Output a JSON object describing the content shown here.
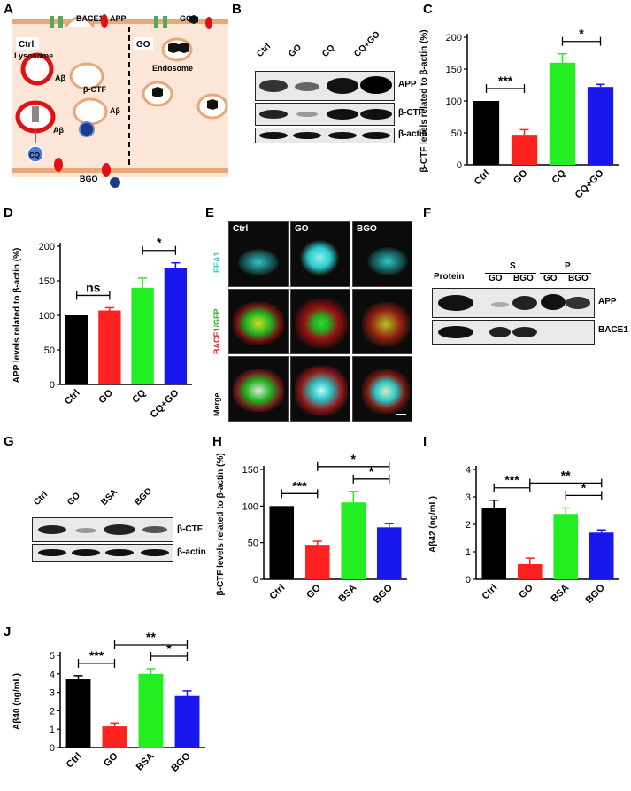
{
  "panels": {
    "A": {
      "label": "A",
      "texts": {
        "ctrl": "Ctrl",
        "go_region": "GO",
        "bace1": "BACE1",
        "app": "APP",
        "lysosome": "Lysosome",
        "abeta1": "Aβ",
        "bctf": "β-CTF",
        "abeta2": "Aβ",
        "abeta3": "Aβ",
        "cq": "CQ",
        "bgo": "BGO",
        "go_top": "GO",
        "endosome": "Endosome"
      }
    },
    "B": {
      "label": "B",
      "columns": [
        "Ctrl",
        "GO",
        "CQ",
        "CQ+GO"
      ],
      "rows": [
        "APP",
        "β-CTF",
        "β-actin"
      ]
    },
    "C": {
      "label": "C"
    },
    "D": {
      "label": "D"
    },
    "E": {
      "label": "E",
      "columns": [
        "Ctrl",
        "GO",
        "BGO"
      ],
      "rows": [
        "EEA1",
        "BACE1/GFP",
        "Merge"
      ],
      "row_bace1": "BACE1",
      "row_gfp": "/GFP",
      "colors": {
        "eea1": "#2ec8c8",
        "bace1": "#e02020",
        "gfp": "#22b222"
      }
    },
    "F": {
      "label": "F",
      "protein": "Protein",
      "group_s": "S",
      "group_p": "P",
      "sub_columns": [
        "GO",
        "BGO",
        "GO",
        "BGO"
      ],
      "rows": [
        "APP",
        "BACE1"
      ]
    },
    "G": {
      "label": "G",
      "columns": [
        "Ctrl",
        "GO",
        "BSA",
        "BGO"
      ],
      "rows": [
        "β-CTF",
        "β-actin"
      ]
    },
    "H": {
      "label": "H"
    },
    "I": {
      "label": "I"
    },
    "J": {
      "label": "J"
    }
  },
  "chart_data": [
    {
      "id": "C",
      "type": "bar",
      "categories": [
        "Ctrl",
        "GO",
        "CQ",
        "CQ+GO"
      ],
      "values": [
        100,
        47,
        160,
        122
      ],
      "errors": [
        0,
        8,
        14,
        4
      ],
      "ylabel": "β-CTF levels related to β-actin (%)",
      "ylim": [
        0,
        200
      ],
      "yticks": [
        0,
        50,
        100,
        150,
        200
      ],
      "colors": [
        "#000000",
        "#ff2020",
        "#22ee22",
        "#1818ee"
      ],
      "significance": [
        {
          "from": 0,
          "to": 1,
          "label": "***"
        },
        {
          "from": 2,
          "to": 3,
          "label": "*"
        }
      ]
    },
    {
      "id": "D",
      "type": "bar",
      "categories": [
        "Ctrl",
        "GO",
        "CQ",
        "CQ+GO"
      ],
      "values": [
        100,
        107,
        140,
        168
      ],
      "errors": [
        0,
        4,
        14,
        8
      ],
      "ylabel": "APP levels  related to β-actin (%)",
      "ylim": [
        0,
        200
      ],
      "yticks": [
        0,
        50,
        100,
        150,
        200
      ],
      "colors": [
        "#000000",
        "#ff2020",
        "#22ee22",
        "#1818ee"
      ],
      "significance": [
        {
          "from": 0,
          "to": 1,
          "label": "ns"
        },
        {
          "from": 2,
          "to": 3,
          "label": "*"
        }
      ]
    },
    {
      "id": "H",
      "type": "bar",
      "categories": [
        "Ctrl",
        "GO",
        "BSA",
        "BGO"
      ],
      "values": [
        100,
        47,
        105,
        71
      ],
      "errors": [
        0,
        5,
        15,
        5
      ],
      "ylabel": "β-CTF levels related to β-actin (%)",
      "ylim": [
        0,
        150
      ],
      "yticks": [
        0,
        50,
        100,
        150
      ],
      "colors": [
        "#000000",
        "#ff2020",
        "#22ee22",
        "#1818ee"
      ],
      "significance": [
        {
          "from": 0,
          "to": 1,
          "label": "***"
        },
        {
          "from": 1,
          "to": 3,
          "label": "*"
        },
        {
          "from": 2,
          "to": 3,
          "label": "*"
        }
      ]
    },
    {
      "id": "I",
      "type": "bar",
      "categories": [
        "Ctrl",
        "GO",
        "BSA",
        "BGO"
      ],
      "values": [
        2.6,
        0.55,
        2.38,
        1.7
      ],
      "errors": [
        0.28,
        0.22,
        0.22,
        0.1
      ],
      "ylabel": "Aβ42 (ng/mL)",
      "ylim": [
        0,
        4
      ],
      "yticks": [
        0,
        1,
        2,
        3,
        4
      ],
      "colors": [
        "#000000",
        "#ff2020",
        "#22ee22",
        "#1818ee"
      ],
      "significance": [
        {
          "from": 0,
          "to": 1,
          "label": "***"
        },
        {
          "from": 1,
          "to": 3,
          "label": "**"
        },
        {
          "from": 2,
          "to": 3,
          "label": "*"
        }
      ]
    },
    {
      "id": "J",
      "type": "bar",
      "categories": [
        "Ctrl",
        "GO",
        "BSA",
        "BGO"
      ],
      "values": [
        3.7,
        1.15,
        4.0,
        2.8
      ],
      "errors": [
        0.2,
        0.18,
        0.28,
        0.28
      ],
      "ylabel": "Aβ40 (ng/mL)",
      "ylim": [
        0,
        5
      ],
      "yticks": [
        0,
        1,
        2,
        3,
        4,
        5
      ],
      "colors": [
        "#000000",
        "#ff2020",
        "#22ee22",
        "#1818ee"
      ],
      "significance": [
        {
          "from": 0,
          "to": 1,
          "label": "***"
        },
        {
          "from": 1,
          "to": 3,
          "label": "**"
        },
        {
          "from": 2,
          "to": 3,
          "label": "*"
        }
      ]
    }
  ]
}
